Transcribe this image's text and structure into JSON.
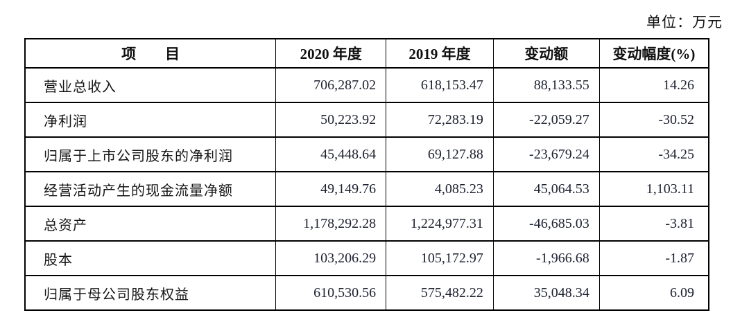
{
  "unit_label": "单位：万元",
  "colors": {
    "border": "#000000",
    "text": "#1a1a1a",
    "background": "#ffffff"
  },
  "table": {
    "headers": [
      "项　　目",
      "2020 年度",
      "2019 年度",
      "变动额",
      "变动幅度(%)"
    ],
    "rows": [
      {
        "item": "营业总收入",
        "y2020": "706,287.02",
        "y2019": "618,153.47",
        "change": "88,133.55",
        "change_pct": "14.26"
      },
      {
        "item": "净利润",
        "y2020": "50,223.92",
        "y2019": "72,283.19",
        "change": "-22,059.27",
        "change_pct": "-30.52"
      },
      {
        "item": "归属于上市公司股东的净利润",
        "y2020": "45,448.64",
        "y2019": "69,127.88",
        "change": "-23,679.24",
        "change_pct": "-34.25"
      },
      {
        "item": "经营活动产生的现金流量净额",
        "y2020": "49,149.76",
        "y2019": "4,085.23",
        "change": "45,064.53",
        "change_pct": "1,103.11"
      },
      {
        "item": "总资产",
        "y2020": "1,178,292.28",
        "y2019": "1,224,977.31",
        "change": "-46,685.03",
        "change_pct": "-3.81"
      },
      {
        "item": "股本",
        "y2020": "103,206.29",
        "y2019": "105,172.97",
        "change": "-1,966.68",
        "change_pct": "-1.87"
      },
      {
        "item": "归属于母公司股东权益",
        "y2020": "610,530.56",
        "y2019": "575,482.22",
        "change": "35,048.34",
        "change_pct": "6.09"
      }
    ]
  }
}
